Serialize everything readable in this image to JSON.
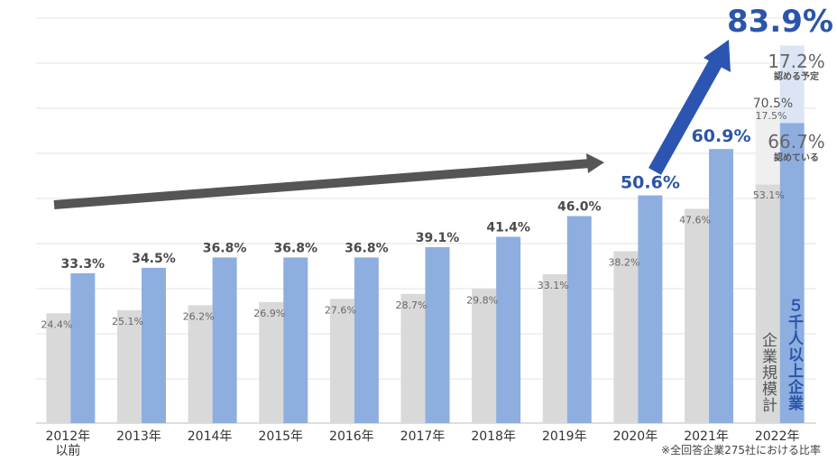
{
  "chart_data": {
    "type": "bar",
    "categories": [
      "2012年\n以前",
      "2013年",
      "2014年",
      "2015年",
      "2016年",
      "2017年",
      "2018年",
      "2019年",
      "2020年",
      "2021年",
      "2022年"
    ],
    "series": [
      {
        "name": "企業規模計",
        "values": [
          24.4,
          25.1,
          26.2,
          26.9,
          27.6,
          28.7,
          29.8,
          33.1,
          38.2,
          47.6,
          53.1
        ],
        "labels": [
          "24.4%",
          "25.1%",
          "26.2%",
          "26.9%",
          "27.6%",
          "28.7%",
          "29.8%",
          "33.1%",
          "38.2%",
          "47.6%",
          "53.1%"
        ]
      },
      {
        "name": "５千人以上企業",
        "values": [
          33.3,
          34.5,
          36.8,
          36.8,
          36.8,
          39.1,
          41.4,
          46.0,
          50.6,
          60.9,
          66.7
        ],
        "labels": [
          "33.3%",
          "34.5%",
          "36.8%",
          "36.8%",
          "36.8%",
          "39.1%",
          "41.4%",
          "46.0%",
          "50.6%",
          "60.9%",
          "66.7%"
        ]
      }
    ],
    "stacked_2022": {
      "gray_extra": 17.5,
      "gray_extra_label": "17.5%",
      "gray_total": 70.5,
      "gray_total_label": "70.5%",
      "blue_extra": 17.2,
      "blue_extra_label": "17.2%",
      "blue_total": 83.9,
      "blue_total_label": "83.9%"
    },
    "annotations": {
      "allowed_label": "認めている",
      "planned_label": "認める予定",
      "large_label": "５千人以上企業",
      "all_label": "企業規模計"
    },
    "ylim": [
      0,
      90
    ],
    "grid": true,
    "footnote": "※全回答企業275社における比率",
    "colors": {
      "gray": "#d9d9d9",
      "gray_light": "#efefef",
      "blue": "#8eaee0",
      "blue_light": "#dbe5f5",
      "blue_text": "#2b55a8",
      "dark_text": "#4a4a4a",
      "arrow_dark": "#555555",
      "arrow_blue": "#2b55b0"
    }
  }
}
